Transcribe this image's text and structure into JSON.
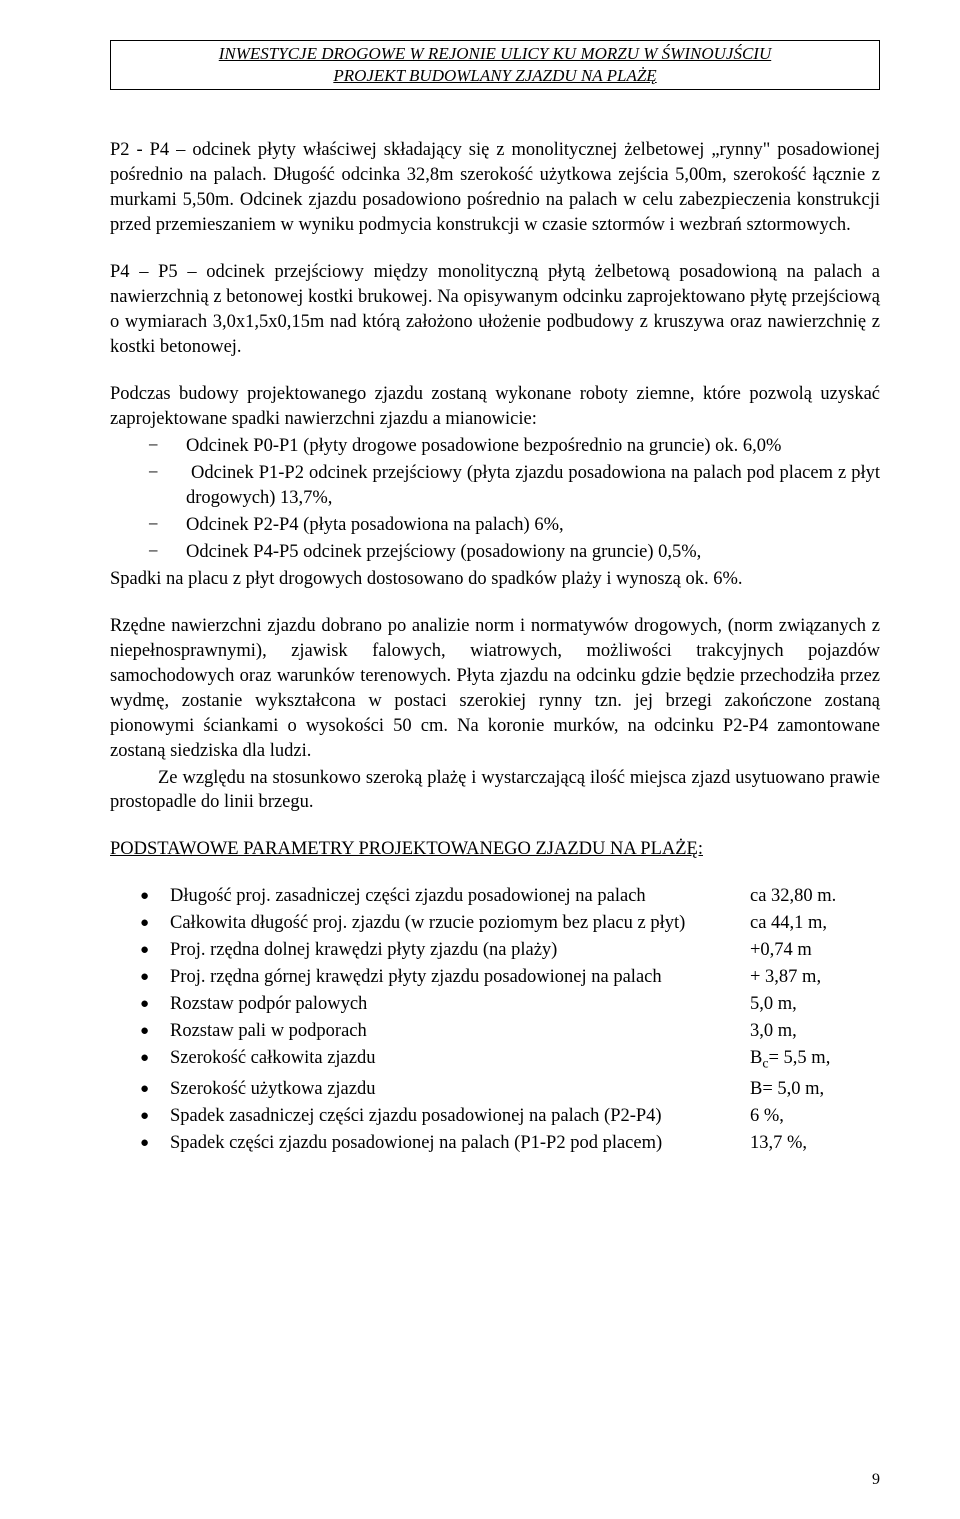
{
  "header": {
    "line1": "INWESTYCJE DROGOWE W REJONIE ULICY KU MORZU W ŚWINOUJŚCIU",
    "line2": "PROJEKT BUDOWLANY ZJAZDU NA PLAŻĘ"
  },
  "paragraphs": {
    "p1": "P2 - P4 – odcinek płyty właściwej składający się z monolitycznej żelbetowej „rynny\" posadowionej pośrednio na palach. Długość odcinka 32,8m szerokość użytkowa zejścia 5,00m, szerokość łącznie z murkami 5,50m. Odcinek zjazdu posadowiono pośrednio na palach w celu zabezpieczenia konstrukcji przed przemieszaniem w wyniku podmycia konstrukcji w czasie sztormów i wezbrań sztormowych.",
    "p2": "P4 – P5 – odcinek przejściowy między monolityczną płytą żelbetową posadowioną na palach a nawierzchnią z betonowej kostki brukowej. Na opisywanym odcinku zaprojektowano płytę przejściową o wymiarach 3,0x1,5x0,15m nad którą założono ułożenie podbudowy z kruszywa oraz nawierzchnię z kostki betonowej.",
    "p3_intro": "Podczas budowy projektowanego zjazdu zostaną wykonane roboty ziemne, które pozwolą uzyskać zaprojektowane spadki nawierzchni zjazdu a mianowicie:",
    "p3_after": "Spadki na placu z płyt drogowych dostosowano do spadków plaży i wynoszą ok. 6%.",
    "p4": "Rzędne nawierzchni zjazdu dobrano po analizie norm i normatywów drogowych, (norm związanych z niepełnosprawnymi), zjawisk falowych, wiatrowych, możliwości trakcyjnych pojazdów samochodowych oraz warunków terenowych. Płyta zjazdu na odcinku gdzie będzie przechodziła przez wydmę, zostanie wykształcona w postaci szerokiej rynny tzn. jej brzegi zakończone zostaną pionowymi ściankami o wysokości 50 cm. Na koronie murków, na odcinku P2-P4 zamontowane zostaną siedziska dla ludzi.",
    "p5": "Ze względu na stosunkowo szeroką plażę i wystarczającą ilość miejsca zjazd usytuowano prawie prostopadle do linii brzegu."
  },
  "dash_list": [
    "Odcinek P0-P1 (płyty drogowe posadowione bezpośrednio na gruncie) ok. 6,0%",
    " Odcinek P1-P2 odcinek przejściowy (płyta zjazdu posadowiona na palach pod placem z płyt drogowych) 13,7%,",
    "Odcinek P2-P4 (płyta posadowiona na palach) 6%,",
    "Odcinek P4-P5 odcinek przejściowy (posadowiony na gruncie) 0,5%,"
  ],
  "section_title": "PODSTAWOWE PARAMETRY PROJEKTOWANEGO ZJAZDU NA PLAŻĘ:",
  "params": [
    {
      "label": "Długość proj. zasadniczej części zjazdu posadowionej na palach",
      "value": "ca 32,80 m."
    },
    {
      "label": "Całkowita długość proj. zjazdu (w rzucie poziomym bez placu z płyt)",
      "value": "ca 44,1 m,"
    },
    {
      "label": "Proj. rzędna dolnej krawędzi płyty zjazdu (na plaży)",
      "value": "+0,74 m"
    },
    {
      "label": "Proj. rzędna górnej krawędzi płyty zjazdu posadowionej na palach",
      "value": "+ 3,87 m,"
    },
    {
      "label": "Rozstaw podpór palowych",
      "value": "5,0 m,"
    },
    {
      "label": "Rozstaw pali w podporach",
      "value": "3,0 m,"
    },
    {
      "label": "Szerokość całkowita zjazdu",
      "value": "B<sub>c</sub>= 5,5 m,",
      "html": true
    },
    {
      "label": "Szerokość użytkowa zjazdu",
      "value": "B= 5,0 m,"
    },
    {
      "label": "Spadek zasadniczej części zjazdu posadowionej na palach (P2-P4)",
      "value": "6 %,"
    },
    {
      "label": "Spadek części zjazdu posadowionej na palach (P1-P2 pod placem)",
      "value": "13,7 %,"
    }
  ],
  "page_number": "9"
}
